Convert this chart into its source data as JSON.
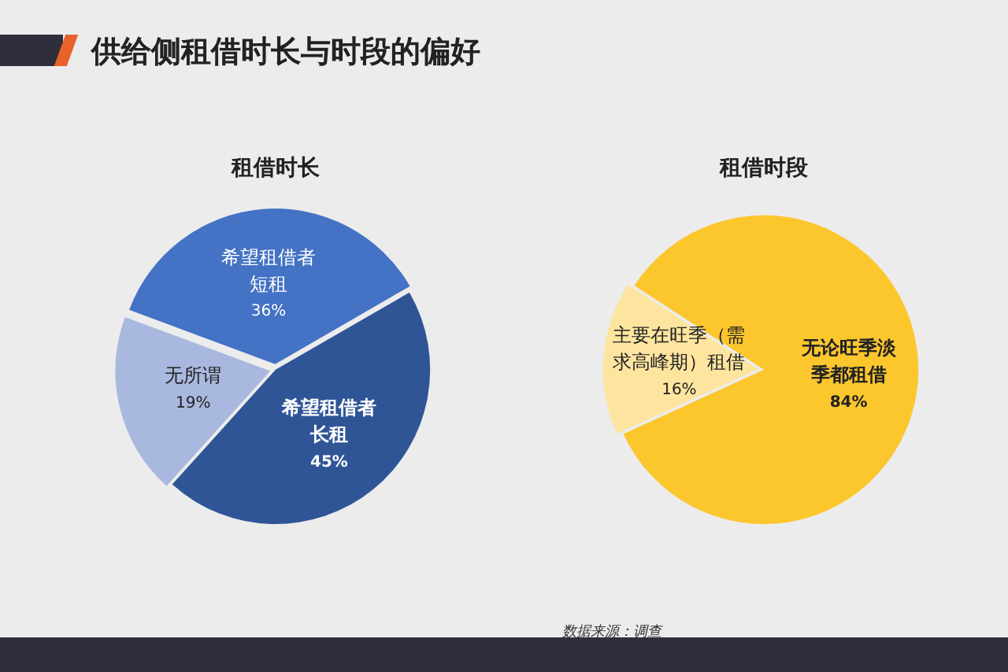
{
  "chart_data": [
    {
      "type": "pie",
      "title": "租借时长",
      "annotations": [
        "供给侧租借时长与时段的偏好"
      ],
      "categories": [
        "希望租借者长租",
        "无所谓",
        "希望租借者短租"
      ],
      "values": [
        45,
        19,
        36
      ],
      "colors": [
        "#2f5597",
        "#a9b8de",
        "#4472c4"
      ],
      "value_labels": [
        "45%",
        "19%",
        "36%"
      ],
      "legend": false
    },
    {
      "type": "pie",
      "title": "租借时段",
      "annotations": [
        "数据来源：调查"
      ],
      "categories": [
        "无论旺季淡季都租借",
        "主要在旺季（需求高峰期）租借"
      ],
      "values": [
        84,
        16
      ],
      "colors": [
        "#fcc62d",
        "#fde5a0"
      ],
      "value_labels": [
        "84%",
        "16%"
      ],
      "legend": false
    }
  ]
}
